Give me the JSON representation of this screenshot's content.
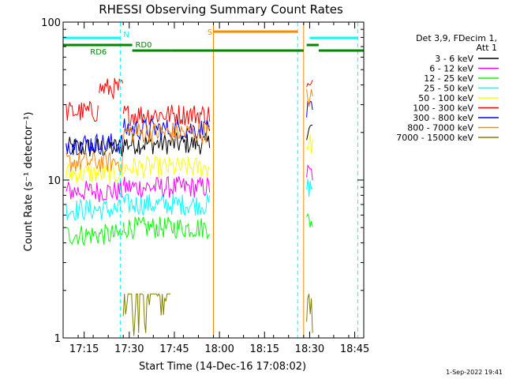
{
  "chart_data": {
    "type": "line",
    "title": "RHESSI Observing Summary Count Rates",
    "xlabel": "Start Time (14-Dec-16 17:08:02)",
    "ylabel": "Count Rate (s⁻¹ detector⁻¹)",
    "y_scale": "log",
    "ylim": [
      1,
      100
    ],
    "xlim": [
      "17:08",
      "18:48"
    ],
    "x_ticks": [
      "17:15",
      "17:30",
      "17:45",
      "18:00",
      "18:15",
      "18:30",
      "18:45"
    ],
    "y_ticks": [
      "1",
      "10",
      "100"
    ],
    "legend_header": [
      "Det 3,9, FDecim 1,",
      "Att 1"
    ],
    "legend_placement": "right",
    "series": [
      {
        "name": "3 - 6 keV",
        "color": "#000000",
        "values": [
          {
            "start": "17:09",
            "end": "17:28",
            "level": 16
          },
          {
            "start": "17:28",
            "end": "17:57",
            "level": 17
          },
          {
            "start": "18:29",
            "end": "18:31",
            "level": 21
          }
        ]
      },
      {
        "name": "6 - 12 keV",
        "color": "#ff00ff",
        "values": [
          {
            "start": "17:09",
            "end": "17:28",
            "level": 8.5
          },
          {
            "start": "17:28",
            "end": "17:57",
            "level": 9
          },
          {
            "start": "18:29",
            "end": "18:31",
            "level": 11
          }
        ]
      },
      {
        "name": "12 - 25 keV",
        "color": "#00ff00",
        "values": [
          {
            "start": "17:09",
            "end": "17:28",
            "level": 4.5
          },
          {
            "start": "17:28",
            "end": "17:57",
            "level": 5
          },
          {
            "start": "18:29",
            "end": "18:31",
            "level": 5.5
          }
        ]
      },
      {
        "name": "25 - 50 keV",
        "color": "#00ffff",
        "values": [
          {
            "start": "17:09",
            "end": "17:28",
            "level": 6.5
          },
          {
            "start": "17:28",
            "end": "17:57",
            "level": 7
          },
          {
            "start": "18:29",
            "end": "18:31",
            "level": 9
          }
        ]
      },
      {
        "name": "50 - 100 keV",
        "color": "#ffff00",
        "values": [
          {
            "start": "17:09",
            "end": "17:28",
            "level": 11
          },
          {
            "start": "17:28",
            "end": "17:57",
            "level": 12
          },
          {
            "start": "18:29",
            "end": "18:31",
            "level": 17
          }
        ]
      },
      {
        "name": "100 - 300 keV",
        "color": "#ff0000",
        "values": [
          {
            "start": "17:09",
            "end": "17:20",
            "level": 27
          },
          {
            "start": "17:20",
            "end": "17:28",
            "level": 38
          },
          {
            "start": "17:28",
            "end": "17:57",
            "level": 26
          },
          {
            "start": "18:29",
            "end": "18:31",
            "level": 38
          }
        ]
      },
      {
        "name": "300 - 800 keV",
        "color": "#0000ff",
        "values": [
          {
            "start": "17:09",
            "end": "17:28",
            "level": 17
          },
          {
            "start": "17:28",
            "end": "17:57",
            "level": 21
          },
          {
            "start": "18:29",
            "end": "18:31",
            "level": 27
          }
        ]
      },
      {
        "name": "800 - 7000 keV",
        "color": "#ff8800",
        "values": [
          {
            "start": "17:09",
            "end": "17:28",
            "level": 13
          },
          {
            "start": "17:28",
            "end": "17:57",
            "level": 20
          },
          {
            "start": "18:29",
            "end": "18:31",
            "level": 33
          }
        ]
      },
      {
        "name": "7000 - 15000 keV",
        "color": "#808000",
        "values": [
          {
            "start": "17:09",
            "end": "17:28",
            "level": 1
          },
          {
            "start": "17:28",
            "end": "17:44",
            "level": 1.9
          },
          {
            "start": "17:44",
            "end": "17:57",
            "level": 1
          },
          {
            "start": "18:29",
            "end": "18:31",
            "level": 1.9
          }
        ]
      }
    ],
    "flags": [
      {
        "label": "N",
        "color": "#00ffff",
        "segments": [
          {
            "start": "17:08",
            "end": "17:27"
          },
          {
            "start": "18:30",
            "end": "18:46"
          }
        ]
      },
      {
        "label": "RD6",
        "color": "#008800",
        "segments": [
          {
            "start": "17:08",
            "end": "17:31"
          },
          {
            "start": "18:29",
            "end": "18:33"
          }
        ]
      },
      {
        "label": "RD0",
        "color": "#008800",
        "segments": [
          {
            "start": "17:31",
            "end": "17:44"
          },
          {
            "start": "17:44",
            "end": "18:28"
          },
          {
            "start": "18:33",
            "end": "18:48"
          }
        ]
      },
      {
        "label": "S",
        "color": "#ff8800",
        "segments": [
          {
            "start": "17:58",
            "end": "18:26"
          }
        ]
      }
    ],
    "vertical_markers": [
      {
        "time": "17:08",
        "color": "#00ffff"
      },
      {
        "time": "17:27",
        "color": "#00ffff"
      },
      {
        "time": "17:58",
        "color": "#ff8800"
      },
      {
        "time": "18:26",
        "color": "#00ffff"
      },
      {
        "time": "18:28",
        "color": "#ff8800"
      },
      {
        "time": "18:46",
        "color": "#00ffff"
      }
    ],
    "grid": false
  },
  "footer": {
    "timestamp": "1-Sep-2022 19:41"
  }
}
